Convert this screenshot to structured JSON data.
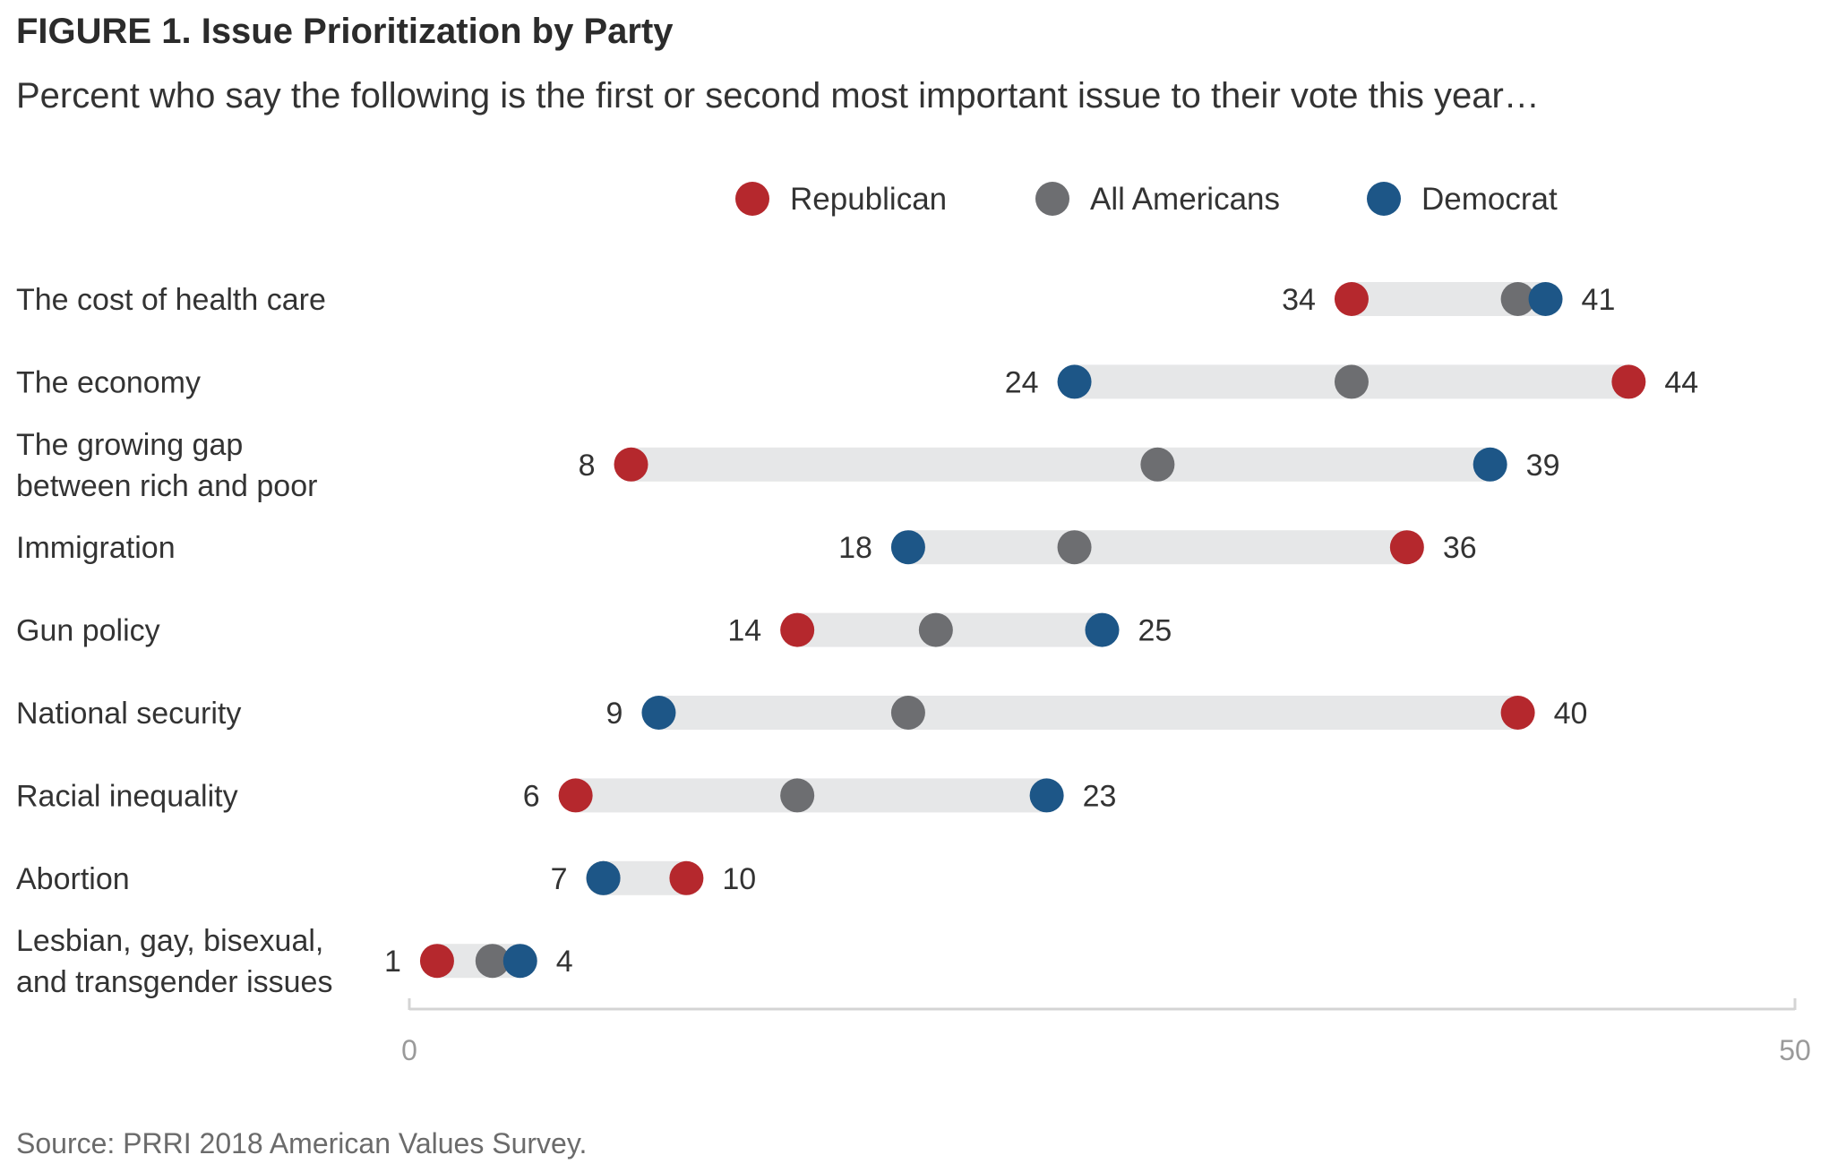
{
  "title": "FIGURE 1.  Issue Prioritization by Party",
  "subtitle": "Percent who say the following is the first or second most important issue to their vote this year…",
  "source": "Source: PRRI 2018 American Values Survey.",
  "colors": {
    "republican": "#b5282d",
    "all_americans": "#6d6e71",
    "democrat": "#1d5687",
    "range_bar": "#e6e7e8",
    "axis": "#d4d4d4"
  },
  "chart_data": {
    "type": "dumbbell",
    "title": "Issue Prioritization by Party",
    "subtitle": "Percent who say the following is the first or second most important issue to their vote this year…",
    "xlim": [
      0,
      50
    ],
    "x_ticks": [
      0,
      50
    ],
    "legend": [
      "Republican",
      "All Americans",
      "Democrat"
    ],
    "legend_position": "top",
    "grid": false,
    "categories": [
      [
        "The cost of health care"
      ],
      [
        "The economy"
      ],
      [
        "The growing gap",
        "between rich and poor"
      ],
      [
        "Immigration"
      ],
      [
        "Gun policy"
      ],
      [
        "National security"
      ],
      [
        "Racial inequality"
      ],
      [
        "Abortion"
      ],
      [
        "Lesbian, gay, bisexual,",
        "and transgender issues"
      ]
    ],
    "series": [
      {
        "name": "Republican",
        "key": "republican",
        "values": [
          34,
          44,
          8,
          36,
          14,
          40,
          6,
          10,
          1
        ]
      },
      {
        "name": "All Americans",
        "key": "all_americans",
        "values": [
          40,
          34,
          27,
          24,
          19,
          18,
          14,
          7,
          3
        ]
      },
      {
        "name": "Democrat",
        "key": "democrat",
        "values": [
          41,
          24,
          39,
          18,
          25,
          9,
          23,
          7,
          4
        ]
      }
    ]
  }
}
